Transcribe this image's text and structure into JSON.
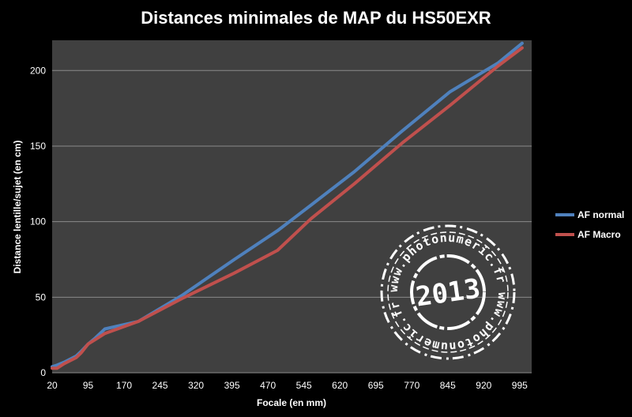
{
  "chart_data": {
    "type": "line",
    "title": "Distances minimales de MAP du HS50EXR",
    "xlabel": "Focale (en mm)",
    "ylabel": "Distance lentille/sujet (en cm)",
    "x_ticks": [
      20,
      95,
      170,
      245,
      320,
      395,
      470,
      545,
      620,
      695,
      770,
      845,
      920,
      995
    ],
    "y_ticks": [
      0,
      50,
      100,
      150,
      200
    ],
    "xlim": [
      20,
      1020
    ],
    "ylim": [
      0,
      220
    ],
    "grid": "horizontal",
    "legend_position": "right",
    "background": "#404040",
    "series": [
      {
        "name": "AF normal",
        "color": "#4f81bd",
        "x": [
          20,
          30,
          45,
          70,
          80,
          95,
          110,
          130,
          200,
          290,
          400,
          490,
          560,
          650,
          750,
          850,
          950,
          1000
        ],
        "y": [
          4,
          5,
          7,
          11,
          14,
          19,
          23,
          29,
          34,
          51,
          75,
          94,
          111,
          133,
          160,
          186,
          205,
          218
        ]
      },
      {
        "name": "AF Macro",
        "color": "#c0504d",
        "x": [
          20,
          30,
          45,
          70,
          80,
          95,
          110,
          130,
          200,
          290,
          400,
          490,
          560,
          650,
          750,
          850,
          950,
          1000
        ],
        "y": [
          3,
          3,
          6,
          10,
          13,
          19,
          22,
          26,
          34,
          49,
          66,
          81,
          102,
          125,
          152,
          177,
          203,
          215
        ]
      }
    ]
  },
  "watermark": {
    "ring_text": "www.photonumeric.fr",
    "year": "2013"
  }
}
